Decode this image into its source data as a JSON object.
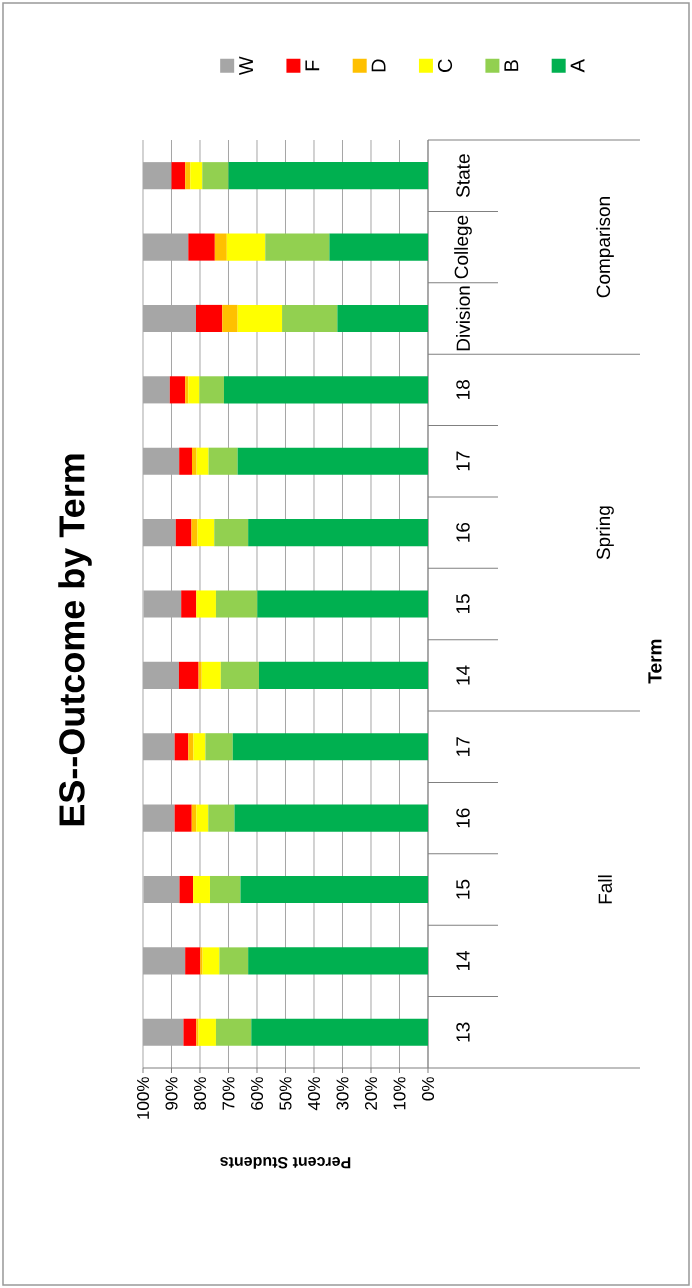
{
  "chart_data": {
    "type": "bar",
    "stacked": true,
    "orientation": "horizontal",
    "title": "ES--Outcome by Term",
    "xlabel": "Percent Students",
    "categories": [
      "State",
      "College",
      "Division",
      "18",
      "17",
      "16",
      "15",
      "14",
      "17",
      "16",
      "15",
      "14",
      "13"
    ],
    "annotations": [
      "Comparison",
      "Spring",
      "Fall",
      "Term"
    ],
    "series": [
      {
        "name": "A",
        "color": "#00b050",
        "values": [
          70.0,
          34.6,
          31.8,
          71.6,
          66.8,
          63.1,
          59.9,
          59.3,
          68.5,
          67.9,
          65.8,
          63.1,
          62.0
        ]
      },
      {
        "name": "B",
        "color": "#92d050",
        "values": [
          9.2,
          22.5,
          19.4,
          8.6,
          10.2,
          11.9,
          14.5,
          13.4,
          9.6,
          9.2,
          10.7,
          10.1,
          12.4
        ]
      },
      {
        "name": "C",
        "color": "#ffff00",
        "values": [
          4.2,
          13.5,
          15.6,
          3.9,
          4.2,
          5.9,
          6.9,
          6.7,
          4.2,
          4.2,
          5.9,
          5.9,
          6.1
        ]
      },
      {
        "name": "D",
        "color": "#ffc000",
        "values": [
          1.8,
          4.2,
          5.4,
          1.1,
          1.6,
          2.1,
          null,
          1.1,
          1.8,
          1.6,
          null,
          0.8,
          0.8
        ]
      },
      {
        "name": "F",
        "color": "#ff0000",
        "values": [
          4.8,
          9.3,
          9.2,
          5.4,
          4.5,
          5.5,
          5.3,
          6.9,
          4.8,
          6.0,
          4.8,
          5.3,
          4.5
        ]
      },
      {
        "name": "W",
        "color": "#a6a6a6",
        "values": [
          10.0,
          15.9,
          18.6,
          9.4,
          12.7,
          11.5,
          13.2,
          12.6,
          11.1,
          11.1,
          12.6,
          14.8,
          14.2
        ]
      }
    ],
    "xlim": [
      100,
      0
    ],
    "xticks": [
      {
        "value": 0,
        "label": "0%"
      },
      {
        "value": 10,
        "label": "10%"
      },
      {
        "value": 20,
        "label": "20%"
      },
      {
        "value": 30,
        "label": "30%"
      },
      {
        "value": 40,
        "label": "40%"
      },
      {
        "value": 50,
        "label": "50%"
      },
      {
        "value": 60,
        "label": "60%"
      },
      {
        "value": 70,
        "label": "70%"
      },
      {
        "value": 80,
        "label": "80%"
      },
      {
        "value": 90,
        "label": "90%"
      },
      {
        "value": 100,
        "label": "100%"
      }
    ],
    "grid": "x",
    "legend": "top right"
  }
}
